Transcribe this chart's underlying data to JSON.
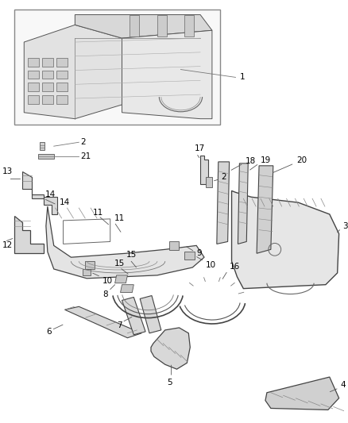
{
  "background_color": "#ffffff",
  "text_color": "#000000",
  "line_color": "#444444",
  "fig_width": 4.38,
  "fig_height": 5.33,
  "dpi": 100,
  "font_size": 7.5
}
